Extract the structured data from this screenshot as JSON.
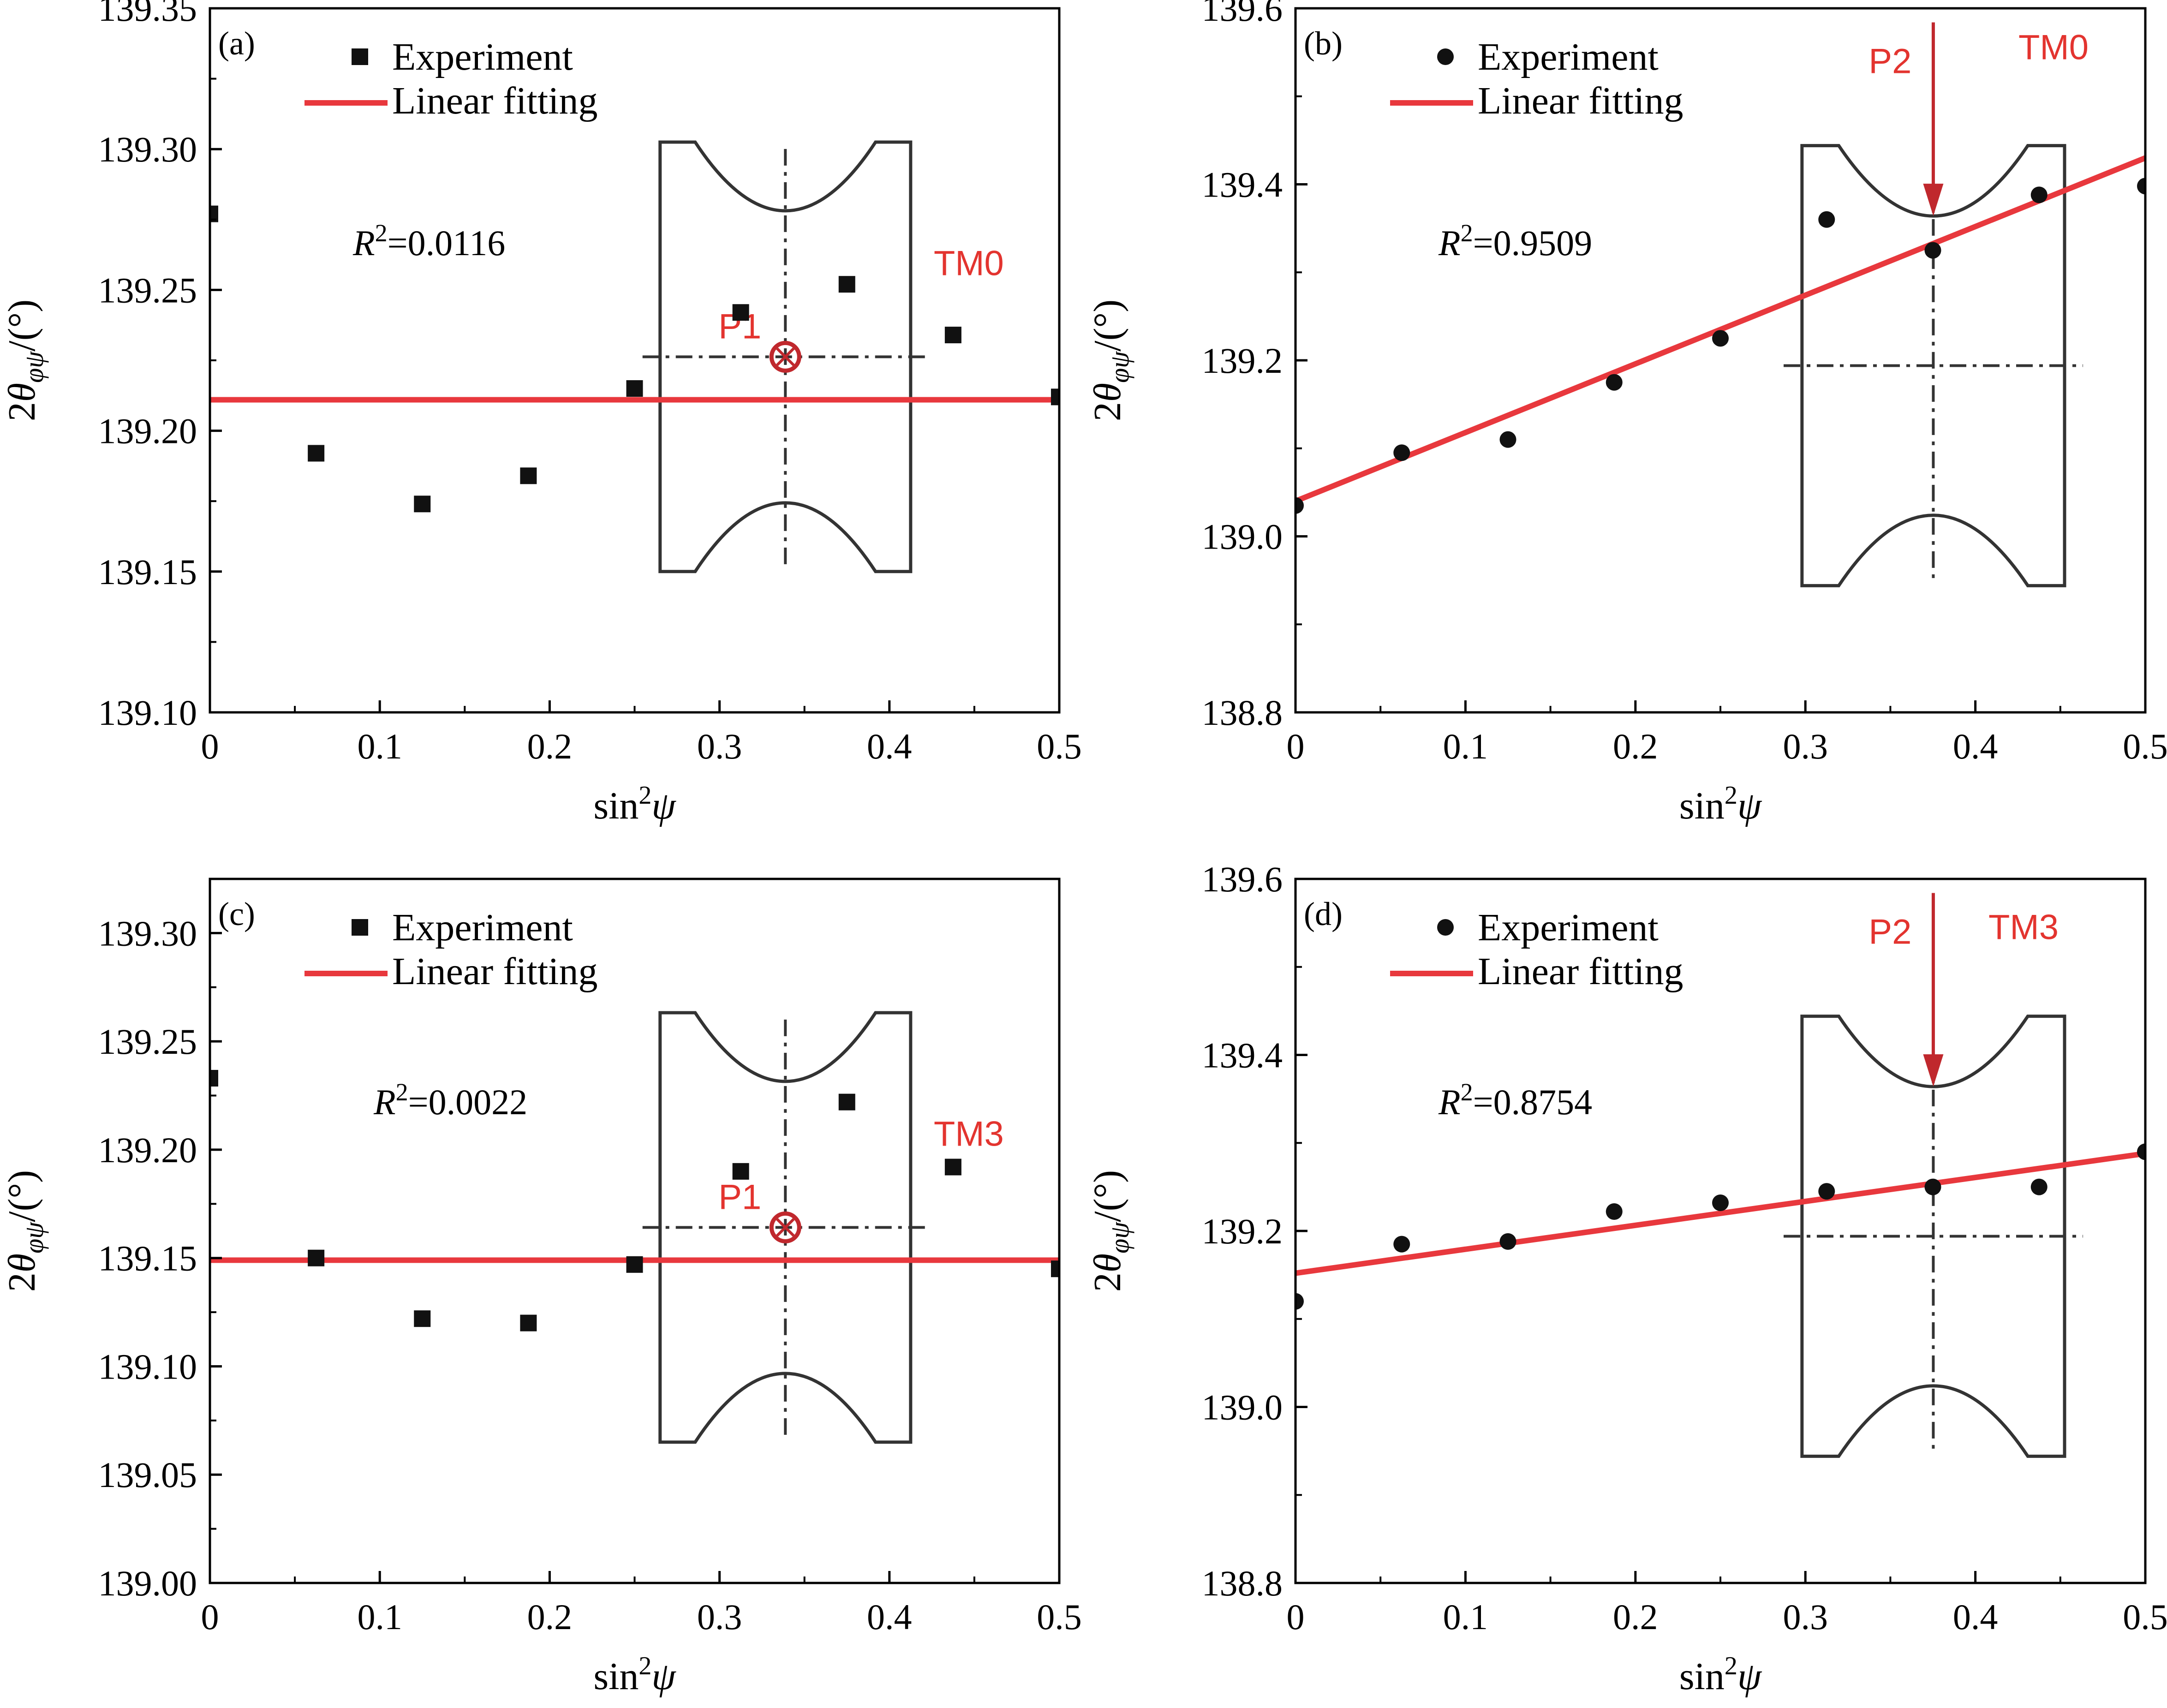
{
  "colors": {
    "fit_line": "#e8383d",
    "marker": "#111111",
    "inset_outline": "#333333",
    "inset_accent": "#c0282d",
    "inset_text": "#e3342f"
  },
  "chart_data": [
    {
      "type": "scatter",
      "panel": "(a)",
      "marker": "square",
      "xlabel": "sin2ψ",
      "ylabel": "2θφψ/(°)",
      "xlim": [
        0,
        0.5
      ],
      "ylim": [
        139.1,
        139.35
      ],
      "xticks": [
        "0",
        "0.1",
        "0.2",
        "0.3",
        "0.4",
        "0.5"
      ],
      "yticks": [
        "139.10",
        "139.15",
        "139.20",
        "139.25",
        "139.30",
        "139.35"
      ],
      "legend": {
        "experiment": "Experiment",
        "fit": "Linear fitting"
      },
      "r2": "=0.0116",
      "experiment": {
        "x": [
          0,
          0.0625,
          0.125,
          0.1875,
          0.25,
          0.3125,
          0.375,
          0.4375,
          0.5
        ],
        "y": [
          139.277,
          139.192,
          139.174,
          139.184,
          139.215,
          139.242,
          139.252,
          139.234,
          139.212
        ]
      },
      "fit": {
        "y0": 139.211,
        "y1": 139.211
      },
      "inset": {
        "type": "point",
        "point_label": "P1",
        "specimen": "TM0"
      }
    },
    {
      "type": "scatter",
      "panel": "(b)",
      "marker": "circle",
      "xlabel": "sin2ψ",
      "ylabel": "2θφψ/(°)",
      "xlim": [
        0,
        0.5
      ],
      "ylim": [
        138.8,
        139.6
      ],
      "xticks": [
        "0",
        "0.1",
        "0.2",
        "0.3",
        "0.4",
        "0.5"
      ],
      "yticks": [
        "138.8",
        "139.0",
        "139.2",
        "139.4",
        "139.6"
      ],
      "legend": {
        "experiment": "Experiment",
        "fit": "Linear fitting"
      },
      "r2": "=0.9509",
      "experiment": {
        "x": [
          0,
          0.0625,
          0.125,
          0.1875,
          0.25,
          0.3125,
          0.375,
          0.4375,
          0.5
        ],
        "y": [
          139.035,
          139.095,
          139.11,
          139.175,
          139.225,
          139.36,
          139.325,
          139.388,
          139.398
        ]
      },
      "fit": {
        "y0": 139.04,
        "y1": 139.43
      },
      "inset": {
        "type": "arrow",
        "point_label": "P2",
        "specimen": "TM0"
      }
    },
    {
      "type": "scatter",
      "panel": "(c)",
      "marker": "square",
      "xlabel": "sin2ψ",
      "ylabel": "2θφψ/(°)",
      "xlim": [
        0,
        0.5
      ],
      "ylim": [
        139.0,
        139.325
      ],
      "xticks": [
        "0",
        "0.1",
        "0.2",
        "0.3",
        "0.4",
        "0.5"
      ],
      "yticks": [
        "139.00",
        "139.05",
        "139.10",
        "139.15",
        "139.20",
        "139.25",
        "139.30"
      ],
      "legend": {
        "experiment": "Experiment",
        "fit": "Linear fitting"
      },
      "r2": "=0.0022",
      "experiment": {
        "x": [
          0,
          0.0625,
          0.125,
          0.1875,
          0.25,
          0.3125,
          0.375,
          0.4375,
          0.5
        ],
        "y": [
          139.233,
          139.15,
          139.122,
          139.12,
          139.147,
          139.19,
          139.222,
          139.192,
          139.145
        ]
      },
      "fit": {
        "y0": 139.149,
        "y1": 139.149
      },
      "inset": {
        "type": "point",
        "point_label": "P1",
        "specimen": "TM3"
      }
    },
    {
      "type": "scatter",
      "panel": "(d)",
      "marker": "circle",
      "xlabel": "sin2ψ",
      "ylabel": "2θφψ/(°)",
      "xlim": [
        0,
        0.5
      ],
      "ylim": [
        138.8,
        139.6
      ],
      "xticks": [
        "0",
        "0.1",
        "0.2",
        "0.3",
        "0.4",
        "0.5"
      ],
      "yticks": [
        "138.8",
        "139.0",
        "139.2",
        "139.4",
        "139.6"
      ],
      "legend": {
        "experiment": "Experiment",
        "fit": "Linear fitting"
      },
      "r2": "=0.8754",
      "experiment": {
        "x": [
          0,
          0.0625,
          0.125,
          0.1875,
          0.25,
          0.3125,
          0.375,
          0.4375,
          0.5
        ],
        "y": [
          139.12,
          139.185,
          139.188,
          139.222,
          139.232,
          139.245,
          139.25,
          139.25,
          139.29
        ]
      },
      "fit": {
        "y0": 139.152,
        "y1": 139.288
      },
      "inset": {
        "type": "arrow",
        "point_label": "P2",
        "specimen": "TM3"
      }
    }
  ]
}
